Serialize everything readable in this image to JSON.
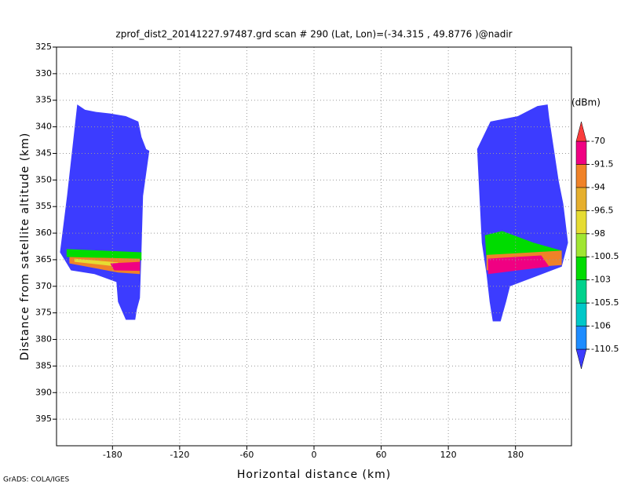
{
  "chart_data": {
    "type": "filled-contour",
    "title": "zprof_dist2_20141227.97487.grd  scan # 290  (Lat, Lon)=(-34.315 , 49.8776 )@nadir",
    "x_label": "Horizontal distance (km)",
    "y_label": "Distance from satellite altitude (km)",
    "credit": "GrADS: COLA/IGES",
    "xlim": [
      -230,
      230
    ],
    "ylim": [
      400,
      325
    ],
    "xticks": [
      -180,
      -120,
      -60,
      0,
      60,
      120,
      180
    ],
    "yticks": [
      325,
      330,
      335,
      340,
      345,
      350,
      355,
      360,
      365,
      370,
      375,
      380,
      385,
      390,
      395
    ],
    "grid": true,
    "colorbar": {
      "unit": "(dBm)",
      "levels": [
        -110.5,
        -106,
        -105.5,
        -103,
        -100.5,
        -98,
        -96.5,
        -94,
        -91.5,
        -70
      ],
      "colors": [
        "#3c3cff",
        "#1e8cff",
        "#00c8c8",
        "#00d28c",
        "#00dc00",
        "#a0e632",
        "#e6dc32",
        "#e6af2d",
        "#f08228",
        "#f00082",
        "#fa3c3c"
      ]
    },
    "regions": [
      {
        "value": -112,
        "x": [
          -211.5,
          -204.5,
          -194.7,
          -182.1,
          -168.1,
          -156.9,
          -154.1,
          -149.9,
          -147.1,
          -152.7,
          -154.1,
          -155.5,
          -158.3,
          -159.7,
          -168.1,
          -175.1,
          -176.5,
          -196.1,
          -217.1,
          -226.9,
          -220.6
        ],
        "y": [
          335.8,
          336.8,
          337.2,
          337.5,
          338.0,
          339.0,
          341.9,
          344.2,
          344.5,
          353.0,
          363.3,
          372.2,
          374.4,
          376.3,
          376.3,
          372.9,
          369.2,
          367.7,
          367.0,
          363.6,
          353.0
        ]
      },
      {
        "value": -102,
        "x": [
          -221,
          -154.1,
          -154.1,
          -221
        ],
        "y": [
          363.0,
          363.6,
          365.1,
          364.5
        ]
      },
      {
        "value": -93,
        "x": [
          -218.5,
          -155.5,
          -155.5,
          -175,
          -203,
          -218.5
        ],
        "y": [
          364.5,
          364.8,
          367.7,
          367.4,
          366.3,
          365.7
        ]
      },
      {
        "value": -97,
        "x": [
          -214,
          -175,
          -175,
          -214
        ],
        "y": [
          364.8,
          365.5,
          366.3,
          365.4
        ]
      },
      {
        "value": -85,
        "x": [
          -182,
          -155.5,
          -155.5,
          -178.5
        ],
        "y": [
          365.7,
          365.4,
          367.1,
          367.0
        ]
      },
      {
        "value": -112,
        "x": [
          145.7,
          157.6,
          182.1,
          199.6,
          208.7,
          210.1,
          218.5,
          222.7,
          226.9,
          221.3,
          175.1,
          171.6,
          166.7,
          159.7,
          156.9,
          154.1,
          149.9
        ],
        "y": [
          344.2,
          339.0,
          338.0,
          336.1,
          335.8,
          338.3,
          350.1,
          354.5,
          361.8,
          366.3,
          370.0,
          372.9,
          376.6,
          376.6,
          372.9,
          367.7,
          361.8
        ]
      },
      {
        "value": -102,
        "x": [
          152.7,
          168.1,
          196.1,
          221.3,
          221.3,
          154.1
        ],
        "y": [
          360.4,
          359.6,
          361.8,
          363.3,
          364.8,
          365.1
        ]
      },
      {
        "value": -93,
        "x": [
          154.1,
          221.3,
          221.3,
          154.1
        ],
        "y": [
          364.1,
          363.3,
          366.0,
          367.0
        ]
      },
      {
        "value": -85,
        "x": [
          155.5,
          203,
          210.1,
          182.1,
          155.5
        ],
        "y": [
          364.8,
          364.2,
          366.3,
          367.0,
          367.7
        ]
      }
    ]
  }
}
